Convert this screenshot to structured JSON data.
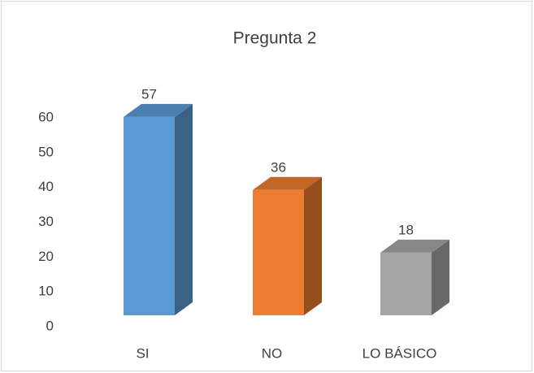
{
  "chart_data": {
    "type": "bar3d",
    "title": "Pregunta 2",
    "categories": [
      "SI",
      "NO",
      "LO BÁSICO"
    ],
    "values": [
      57,
      36,
      18
    ],
    "colors": [
      "#5b9bd5",
      "#ed7d31",
      "#a5a5a5"
    ],
    "ylim": [
      0,
      60
    ],
    "yticks": [
      0,
      10,
      20,
      30,
      40,
      50,
      60
    ],
    "grid": false
  }
}
